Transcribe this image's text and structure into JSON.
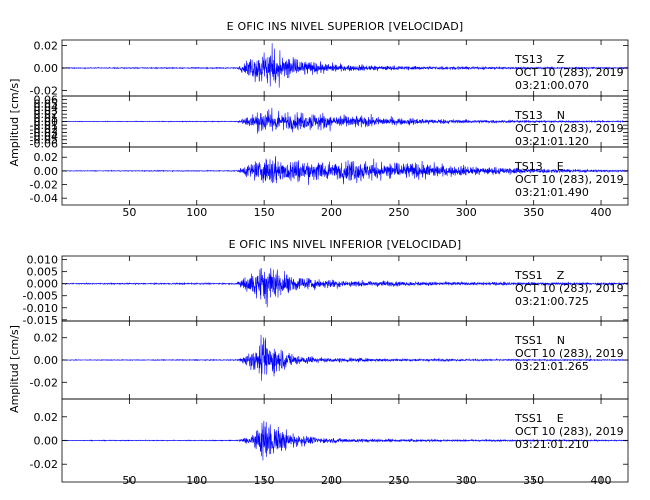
{
  "colors": {
    "trace": "#0000ff",
    "axis": "#000000",
    "background": "#ffffff"
  },
  "chart_data": [
    {
      "type": "line",
      "title": "E OFIC INS NIVEL SUPERIOR [VELOCIDAD]",
      "ylabel": "Amplitud [cm/s]",
      "xlim": [
        0,
        420
      ],
      "x_ticks": [
        50,
        100,
        150,
        200,
        250,
        300,
        350,
        400
      ],
      "panels": [
        {
          "station": "TS13",
          "component": "Z",
          "date": "OCT 10 (283), 2019",
          "time": "03:21:00.070",
          "ylim": [
            -0.025,
            0.025
          ],
          "y_ticks": [
            0.02,
            0.0,
            -0.02
          ],
          "y_tick_labels": [
            "0.02",
            "0.00",
            "-0.02"
          ],
          "peak_amplitude": 0.024,
          "envelope": [
            [
              0,
              0.0005
            ],
            [
              130,
              0.0007
            ],
            [
              138,
              0.01
            ],
            [
              148,
              0.018
            ],
            [
              153,
              0.024
            ],
            [
              158,
              0.022
            ],
            [
              165,
              0.016
            ],
            [
              175,
              0.01
            ],
            [
              190,
              0.006
            ],
            [
              210,
              0.004
            ],
            [
              260,
              0.002
            ],
            [
              330,
              0.0012
            ],
            [
              420,
              0.0008
            ]
          ]
        },
        {
          "station": "TS13",
          "component": "N",
          "date": "OCT 10 (283), 2019",
          "time": "03:21:01.120",
          "ylim": [
            -0.07,
            0.07
          ],
          "y_ticks": [
            0.06,
            0.05,
            0.04,
            0.03,
            0.02,
            0.01,
            0.0,
            -0.01,
            -0.02,
            -0.03,
            -0.04,
            -0.05,
            -0.06
          ],
          "y_tick_labels": [
            "0.06",
            "0.05",
            "0.04",
            "0.03",
            "0.02",
            "0.01",
            "0.00",
            "-0.01",
            "-0.02",
            "-0.03",
            "-0.04",
            "-0.05",
            "-0.06"
          ],
          "peak_amplitude": 0.05,
          "envelope": [
            [
              0,
              0.001
            ],
            [
              130,
              0.0015
            ],
            [
              138,
              0.02
            ],
            [
              150,
              0.04
            ],
            [
              156,
              0.05
            ],
            [
              165,
              0.035
            ],
            [
              180,
              0.03
            ],
            [
              195,
              0.028
            ],
            [
              215,
              0.022
            ],
            [
              240,
              0.015
            ],
            [
              270,
              0.01
            ],
            [
              300,
              0.006
            ],
            [
              340,
              0.004
            ],
            [
              420,
              0.002
            ]
          ]
        },
        {
          "station": "TS13",
          "component": "E",
          "date": "OCT 10 (283), 2019",
          "time": "03:21:01.490",
          "ylim": [
            -0.05,
            0.035
          ],
          "y_ticks": [
            0.02,
            0.0,
            -0.02,
            -0.04
          ],
          "y_tick_labels": [
            "0.02",
            "0.00",
            "-0.02",
            "-0.04"
          ],
          "peak_amplitude": 0.03,
          "envelope": [
            [
              0,
              0.0006
            ],
            [
              130,
              0.001
            ],
            [
              138,
              0.012
            ],
            [
              150,
              0.022
            ],
            [
              158,
              0.03
            ],
            [
              170,
              0.024
            ],
            [
              185,
              0.018
            ],
            [
              200,
              0.02
            ],
            [
              215,
              0.022
            ],
            [
              230,
              0.018
            ],
            [
              250,
              0.016
            ],
            [
              275,
              0.013
            ],
            [
              300,
              0.009
            ],
            [
              330,
              0.006
            ],
            [
              370,
              0.003
            ],
            [
              420,
              0.0015
            ]
          ]
        }
      ]
    },
    {
      "type": "line",
      "title": "E OFIC INS NIVEL INFERIOR [VELOCIDAD]",
      "ylabel": "Amplitud [cm/s]",
      "xlim": [
        0,
        420
      ],
      "x_ticks": [
        50,
        100,
        150,
        200,
        250,
        300,
        350,
        400
      ],
      "panels": [
        {
          "station": "TSS1",
          "component": "Z",
          "date": "OCT 10 (283), 2019",
          "time": "03:21:00.725",
          "ylim": [
            -0.0155,
            0.0115
          ],
          "y_ticks": [
            0.01,
            0.005,
            0.0,
            -0.005,
            -0.01,
            -0.015
          ],
          "y_tick_labels": [
            "0.010",
            "0.005",
            "0.000",
            "-0.005",
            "-0.010",
            "-0.015"
          ],
          "peak_amplitude": 0.011,
          "envelope": [
            [
              0,
              0.0003
            ],
            [
              130,
              0.0004
            ],
            [
              137,
              0.006
            ],
            [
              145,
              0.009
            ],
            [
              152,
              0.011
            ],
            [
              160,
              0.008
            ],
            [
              170,
              0.005
            ],
            [
              185,
              0.003
            ],
            [
              210,
              0.0018
            ],
            [
              260,
              0.001
            ],
            [
              330,
              0.0008
            ],
            [
              420,
              0.0005
            ]
          ]
        },
        {
          "station": "TSS1",
          "component": "N",
          "date": "OCT 10 (283), 2019",
          "time": "03:21:01.265",
          "ylim": [
            -0.035,
            0.035
          ],
          "y_ticks": [
            0.02,
            0.0,
            -0.02
          ],
          "y_tick_labels": [
            "0.02",
            "0.00",
            "-0.02"
          ],
          "peak_amplitude": 0.03,
          "envelope": [
            [
              0,
              0.0004
            ],
            [
              130,
              0.0006
            ],
            [
              137,
              0.006
            ],
            [
              145,
              0.014
            ],
            [
              151,
              0.028
            ],
            [
              156,
              0.022
            ],
            [
              163,
              0.012
            ],
            [
              175,
              0.006
            ],
            [
              195,
              0.003
            ],
            [
              240,
              0.0015
            ],
            [
              330,
              0.0008
            ],
            [
              420,
              0.0006
            ]
          ]
        },
        {
          "station": "TSS1",
          "component": "E",
          "date": "OCT 10 (283), 2019",
          "time": "03:21:01.210",
          "ylim": [
            -0.035,
            0.035
          ],
          "y_ticks": [
            0.02,
            0.0,
            -0.02
          ],
          "y_tick_labels": [
            "0.02",
            "0.00",
            "-0.02"
          ],
          "peak_amplitude": 0.03,
          "envelope": [
            [
              0,
              0.0004
            ],
            [
              130,
              0.0005
            ],
            [
              137,
              0.004
            ],
            [
              145,
              0.01
            ],
            [
              150,
              0.03
            ],
            [
              155,
              0.02
            ],
            [
              162,
              0.012
            ],
            [
              175,
              0.006
            ],
            [
              195,
              0.003
            ],
            [
              240,
              0.0015
            ],
            [
              330,
              0.0008
            ],
            [
              420,
              0.0006
            ]
          ]
        }
      ]
    }
  ]
}
